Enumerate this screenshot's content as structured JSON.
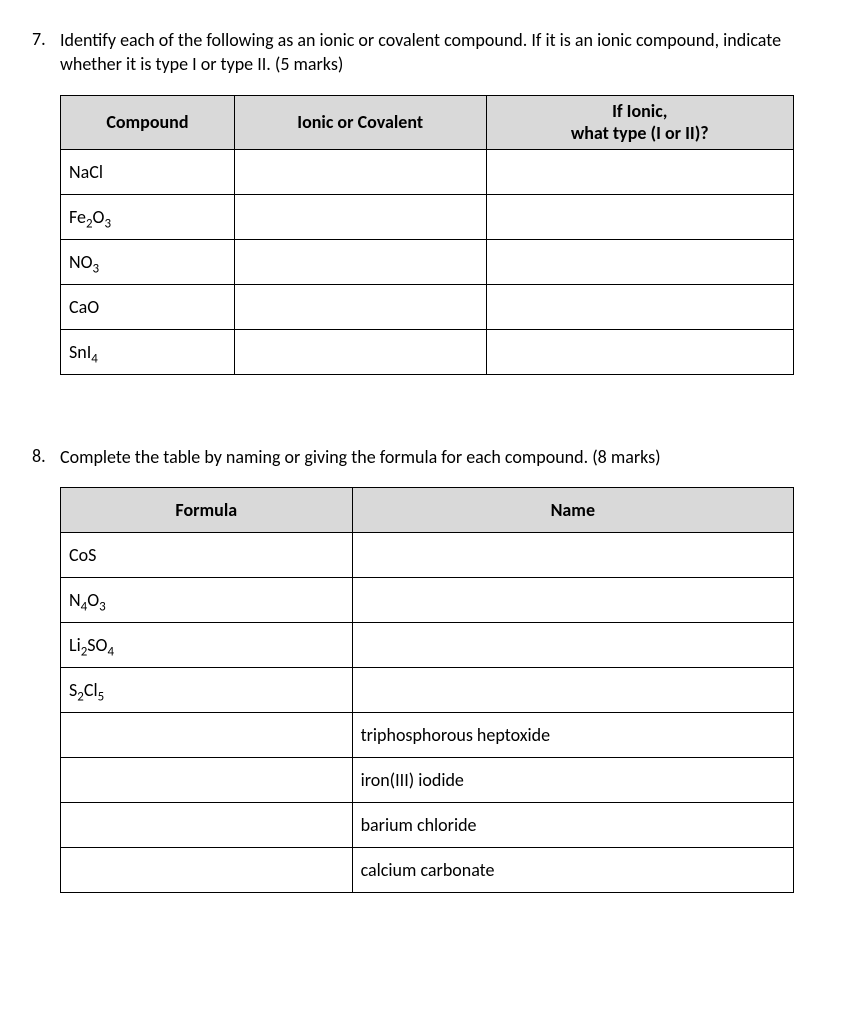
{
  "q7": {
    "number": "7.",
    "prompt": "Identify each of the following as an ionic or covalent compound. If it is an ionic compound, indicate whether it is type I or type II. (5 marks)",
    "headers": {
      "compound": "Compound",
      "ionic_or_covalent": "Ionic or Covalent",
      "if_ionic_line1": "If Ionic,",
      "if_ionic_line2": "what type (I or II)?"
    },
    "rows": [
      {
        "compound_html": "NaCl"
      },
      {
        "compound_html": "Fe<span class='sub'>2</span>O<span class='sub'>3</span>"
      },
      {
        "compound_html": "NO<span class='sub'>3</span>"
      },
      {
        "compound_html": "CaO"
      },
      {
        "compound_html": "SnI<span class='sub'>4</span>"
      }
    ]
  },
  "q8": {
    "number": "8.",
    "prompt": "Complete the table by naming or giving the formula for each compound. (8 marks)",
    "headers": {
      "formula": "Formula",
      "name": "Name"
    },
    "rows": [
      {
        "formula_html": "CoS",
        "name": ""
      },
      {
        "formula_html": "N<span class='sub'>4</span>O<span class='sub'>3</span>",
        "name": ""
      },
      {
        "formula_html": "Li<span class='sub'>2</span>SO<span class='sub'>4</span>",
        "name": ""
      },
      {
        "formula_html": "S<span class='sub'>2</span>Cl<span class='sub'>5</span>",
        "name": ""
      },
      {
        "formula_html": "",
        "name": "triphosphorous heptoxide"
      },
      {
        "formula_html": "",
        "name": "iron(III) iodide"
      },
      {
        "formula_html": "",
        "name": "barium chloride"
      },
      {
        "formula_html": "",
        "name": "calcium carbonate"
      }
    ]
  }
}
